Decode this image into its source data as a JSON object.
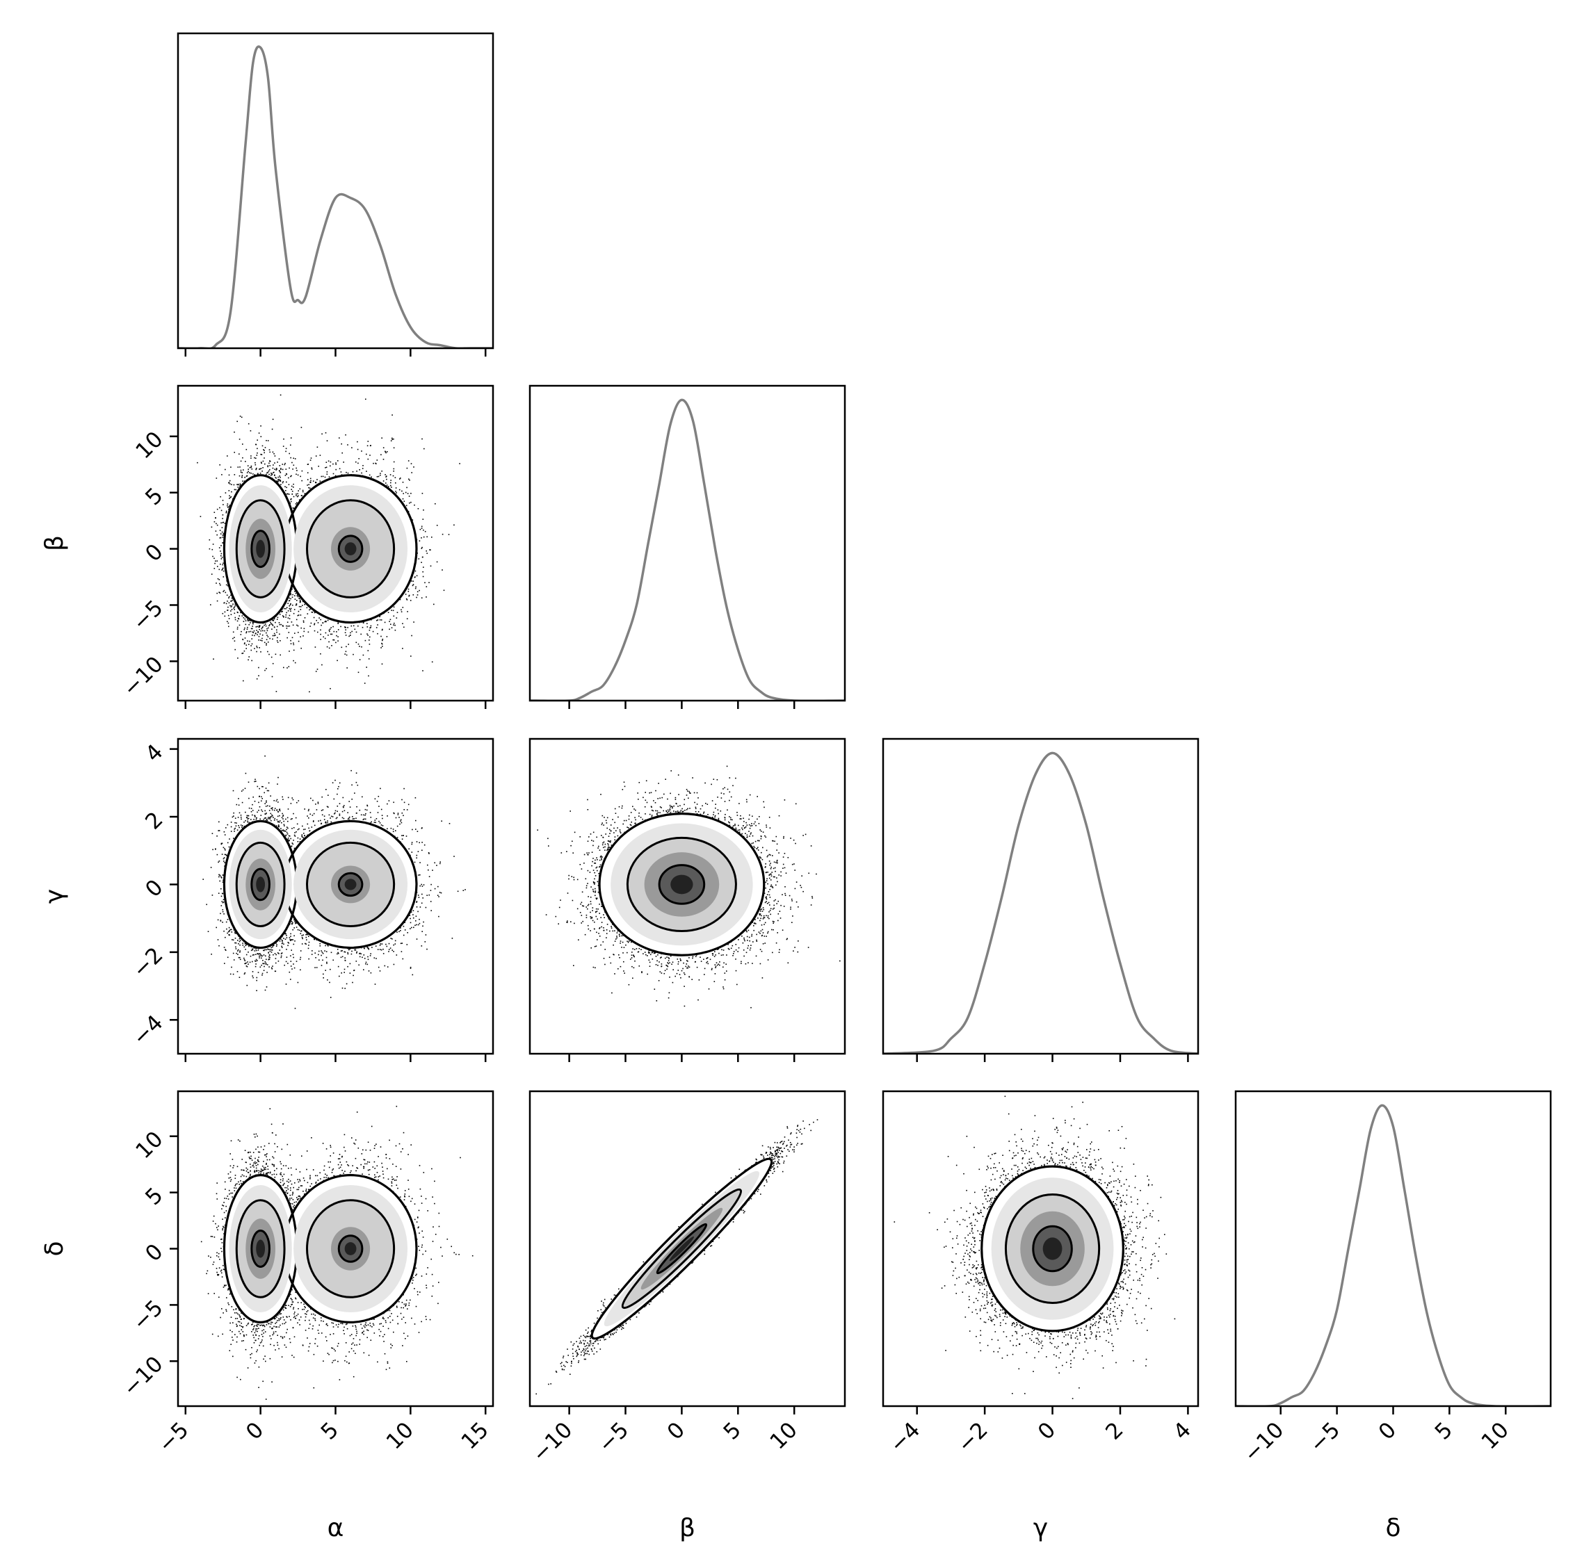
{
  "colors": {
    "hist_line": "#808080",
    "frame": "#000000",
    "points": "#000000",
    "background": "#ffffff"
  },
  "chart_data": {
    "type": "corner",
    "parameters": [
      "α",
      "β",
      "γ",
      "δ"
    ],
    "axes": {
      "α": {
        "range": [
          -5.5,
          15.5
        ],
        "ticks": [
          -5,
          0,
          5,
          10,
          15
        ],
        "tick_labels": [
          "−5",
          "0",
          "5",
          "10",
          "15"
        ]
      },
      "β": {
        "range": [
          -13.5,
          14.5
        ],
        "ticks": [
          -10,
          -5,
          0,
          5,
          10
        ],
        "tick_labels": [
          "−10",
          "−5",
          "0",
          "5",
          "10"
        ]
      },
      "γ": {
        "range": [
          -5,
          4.3
        ],
        "ticks": [
          -4,
          -2,
          0,
          2,
          4
        ],
        "tick_labels": [
          "−4",
          "−2",
          "0",
          "2",
          "4"
        ]
      },
      "δ": {
        "range": [
          -14,
          14
        ],
        "ticks": [
          -10,
          -5,
          0,
          5,
          10
        ],
        "tick_labels": [
          "−10",
          "−5",
          "0",
          "5",
          "10"
        ]
      }
    },
    "histograms": {
      "α": {
        "x": [
          -4,
          -3,
          -2,
          -1,
          -0.5,
          0,
          0.5,
          1,
          2,
          2.5,
          3,
          4,
          5,
          6,
          7,
          8,
          9,
          10,
          11,
          12,
          13,
          14
        ],
        "density": [
          0,
          0.01,
          0.12,
          0.68,
          0.95,
          1.0,
          0.9,
          0.6,
          0.2,
          0.16,
          0.17,
          0.36,
          0.5,
          0.5,
          0.46,
          0.34,
          0.18,
          0.07,
          0.02,
          0.01,
          0,
          0
        ]
      },
      "β": {
        "x": [
          -13,
          -10,
          -9,
          -8,
          -7,
          -6,
          -5,
          -4,
          -3,
          -2,
          -1,
          0,
          1,
          2,
          3,
          4,
          5,
          6,
          7,
          8,
          10,
          14
        ],
        "density": [
          0,
          0,
          0.01,
          0.03,
          0.05,
          0.11,
          0.2,
          0.32,
          0.52,
          0.72,
          0.92,
          1.0,
          0.93,
          0.72,
          0.5,
          0.31,
          0.17,
          0.07,
          0.03,
          0.01,
          0,
          0
        ]
      },
      "γ": {
        "x": [
          -5,
          -3.5,
          -3,
          -2.5,
          -2,
          -1.5,
          -1,
          -0.5,
          0,
          0.5,
          1,
          1.5,
          2,
          2.5,
          3,
          3.5,
          4.3
        ],
        "density": [
          0,
          0.01,
          0.05,
          0.12,
          0.3,
          0.52,
          0.76,
          0.93,
          1.0,
          0.93,
          0.76,
          0.52,
          0.3,
          0.12,
          0.05,
          0.01,
          0
        ]
      },
      "δ": {
        "x": [
          -14,
          -11,
          -10,
          -9,
          -8,
          -7,
          -6,
          -5,
          -4,
          -3,
          -2,
          -1,
          0,
          1,
          2,
          3,
          4,
          5,
          6,
          7,
          9,
          14
        ],
        "density": [
          0,
          0,
          0.01,
          0.03,
          0.05,
          0.11,
          0.2,
          0.32,
          0.52,
          0.72,
          0.92,
          1.0,
          0.93,
          0.72,
          0.5,
          0.31,
          0.17,
          0.07,
          0.03,
          0.01,
          0,
          0
        ]
      }
    },
    "joint": [
      {
        "x": "α",
        "y": "β",
        "modes": [
          {
            "mx": 0,
            "my": 0,
            "sx": 1.1,
            "sy": 3.5,
            "w": 0.55
          },
          {
            "mx": 6,
            "my": 0,
            "sx": 2.0,
            "sy": 3.5,
            "w": 0.45
          }
        ]
      },
      {
        "x": "α",
        "y": "γ",
        "modes": [
          {
            "mx": 0,
            "my": 0,
            "sx": 1.1,
            "sy": 1.0,
            "w": 0.55
          },
          {
            "mx": 6,
            "my": 0,
            "sx": 2.0,
            "sy": 1.0,
            "w": 0.45
          }
        ]
      },
      {
        "x": "β",
        "y": "γ",
        "modes": [
          {
            "mx": 0,
            "my": 0,
            "sx": 3.5,
            "sy": 1.0,
            "w": 1
          }
        ]
      },
      {
        "x": "α",
        "y": "δ",
        "modes": [
          {
            "mx": 0,
            "my": 0,
            "sx": 1.1,
            "sy": 3.5,
            "w": 0.55
          },
          {
            "mx": 6,
            "my": 0,
            "sx": 2.0,
            "sy": 3.5,
            "w": 0.45
          }
        ]
      },
      {
        "x": "β",
        "y": "δ",
        "modes": [
          {
            "mx": 0,
            "my": 0,
            "sx": 3.5,
            "sy": 3.5,
            "w": 1
          }
        ],
        "correlation": 0.98
      },
      {
        "x": "γ",
        "y": "δ",
        "modes": [
          {
            "mx": 0,
            "my": 0,
            "sx": 1.0,
            "sy": 3.5,
            "w": 1
          }
        ]
      }
    ],
    "contour_levels": [
      "1σ",
      "2σ"
    ],
    "xlabels": [
      "α",
      "β",
      "γ",
      "δ"
    ],
    "ylabels": [
      "β",
      "γ",
      "δ"
    ],
    "grid": false,
    "legend": "none"
  }
}
